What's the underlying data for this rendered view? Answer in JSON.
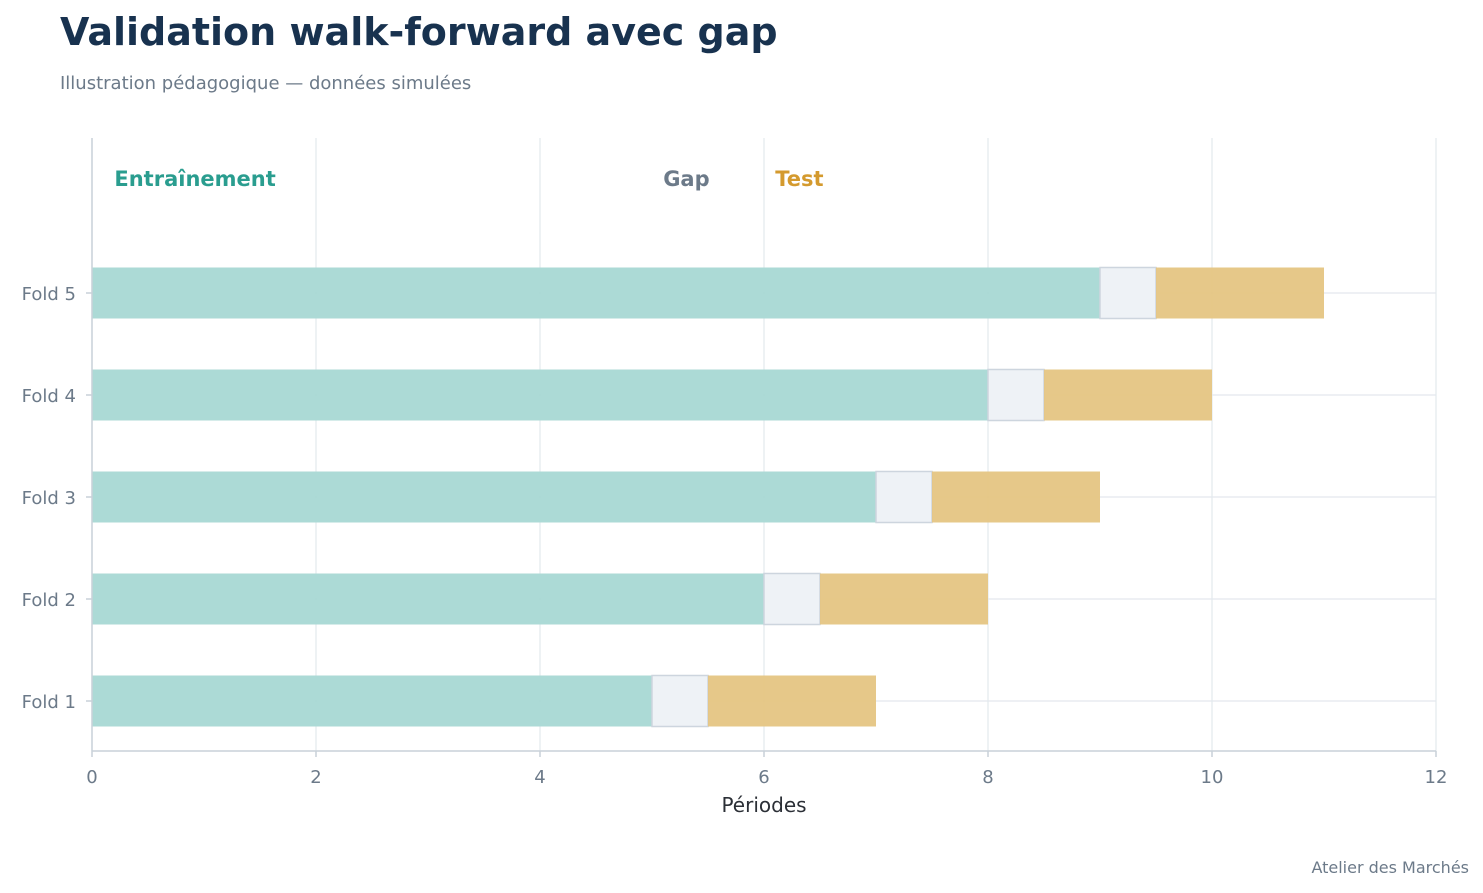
{
  "title": "Validation walk-forward avec gap",
  "subtitle": "Illustration pédagogique — données simulées",
  "credit": "Atelier des Marchés",
  "colors": {
    "train": "#a8d8d4",
    "gap": "#eef2f6",
    "gap_border": "#cdd5de",
    "test": "#e5c583",
    "train_label": "#2a9d8f",
    "gap_label": "#6c7a89",
    "test_label": "#d49a2e",
    "grid": "#e3e8ed",
    "axis": "#c9d1d9",
    "tick_text": "#6c7a89",
    "axis_label": "#2b2f36"
  },
  "chart_data": {
    "type": "bar",
    "orientation": "horizontal",
    "stacked": true,
    "xlabel": "Périodes",
    "ylabel": "",
    "xlim": [
      0,
      12
    ],
    "xticks": [
      0,
      2,
      4,
      6,
      8,
      10,
      12
    ],
    "grid": true,
    "categories": [
      "Fold 1",
      "Fold 2",
      "Fold 3",
      "Fold 4",
      "Fold 5"
    ],
    "series": [
      {
        "name": "Entraînement",
        "start": [
          0,
          0,
          0,
          0,
          0
        ],
        "end": [
          5,
          6,
          7,
          8,
          9
        ]
      },
      {
        "name": "Gap",
        "start": [
          5,
          6,
          7,
          8,
          9
        ],
        "end": [
          5.5,
          6.5,
          7.5,
          8.5,
          9.5
        ]
      },
      {
        "name": "Test",
        "start": [
          5.5,
          6.5,
          7.5,
          8.5,
          9.5
        ],
        "end": [
          7,
          8,
          9,
          10,
          11
        ]
      }
    ],
    "legend": {
      "placement": "top-inline",
      "items": [
        {
          "label": "Entraînement",
          "x": 0.2
        },
        {
          "label": "Gap",
          "x": 5.1
        },
        {
          "label": "Test",
          "x": 6.1
        }
      ]
    }
  }
}
